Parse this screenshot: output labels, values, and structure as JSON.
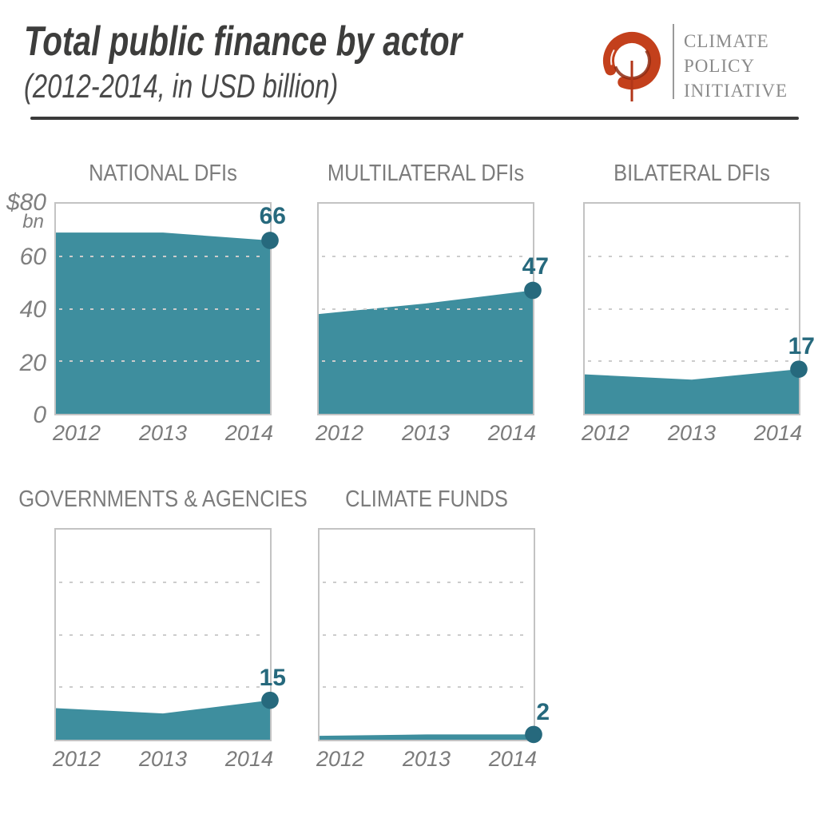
{
  "header": {
    "title": "Total public finance by actor",
    "subtitle": "(2012-2014, in USD billion)",
    "logo": {
      "mark": "cpi-swirl-icon",
      "lines": [
        "CLIMATE",
        "POLICY",
        "INITIATIVE"
      ]
    }
  },
  "y_axis": {
    "unit_top": "$80",
    "unit_sub": "bn",
    "ticks": [
      "60",
      "40",
      "20",
      "0"
    ]
  },
  "colors": {
    "area": "#3E8E9E",
    "marker": "#26697D",
    "grid": "#CCCCCC",
    "title_text": "#3D3D3C",
    "muted_text": "#7B7B7B",
    "logo_orange": "#C3401C",
    "rule": "#3A3A3A"
  },
  "chart_data": [
    {
      "type": "area",
      "title": "NATIONAL DFIs",
      "x": [
        "2012",
        "2013",
        "2014"
      ],
      "values": [
        69,
        69,
        66
      ],
      "end_label": "66",
      "ylim": [
        0,
        80
      ],
      "gridlines": [
        20,
        40,
        60
      ],
      "grid_style": "dotted"
    },
    {
      "type": "area",
      "title": "MULTILATERAL DFIs",
      "x": [
        "2012",
        "2013",
        "2014"
      ],
      "values": [
        38,
        42,
        47
      ],
      "end_label": "47",
      "ylim": [
        0,
        80
      ],
      "gridlines": [
        20,
        40,
        60
      ],
      "grid_style": "dotted"
    },
    {
      "type": "area",
      "title": "BILATERAL DFIs",
      "x": [
        "2012",
        "2013",
        "2014"
      ],
      "values": [
        15,
        13,
        17
      ],
      "end_label": "17",
      "ylim": [
        0,
        80
      ],
      "gridlines": [
        20,
        40,
        60
      ],
      "grid_style": "dotted"
    },
    {
      "type": "area",
      "title": "GOVERNMENTS & AGENCIES",
      "x": [
        "2012",
        "2013",
        "2014"
      ],
      "values": [
        12,
        10,
        15
      ],
      "end_label": "15",
      "ylim": [
        0,
        80
      ],
      "gridlines": [
        20,
        40,
        60
      ],
      "grid_style": "dotted"
    },
    {
      "type": "area",
      "title": "CLIMATE FUNDS",
      "x": [
        "2012",
        "2013",
        "2014"
      ],
      "values": [
        1.5,
        2,
        2
      ],
      "end_label": "2",
      "ylim": [
        0,
        80
      ],
      "gridlines": [
        20,
        40,
        60
      ],
      "grid_style": "dotted"
    }
  ]
}
